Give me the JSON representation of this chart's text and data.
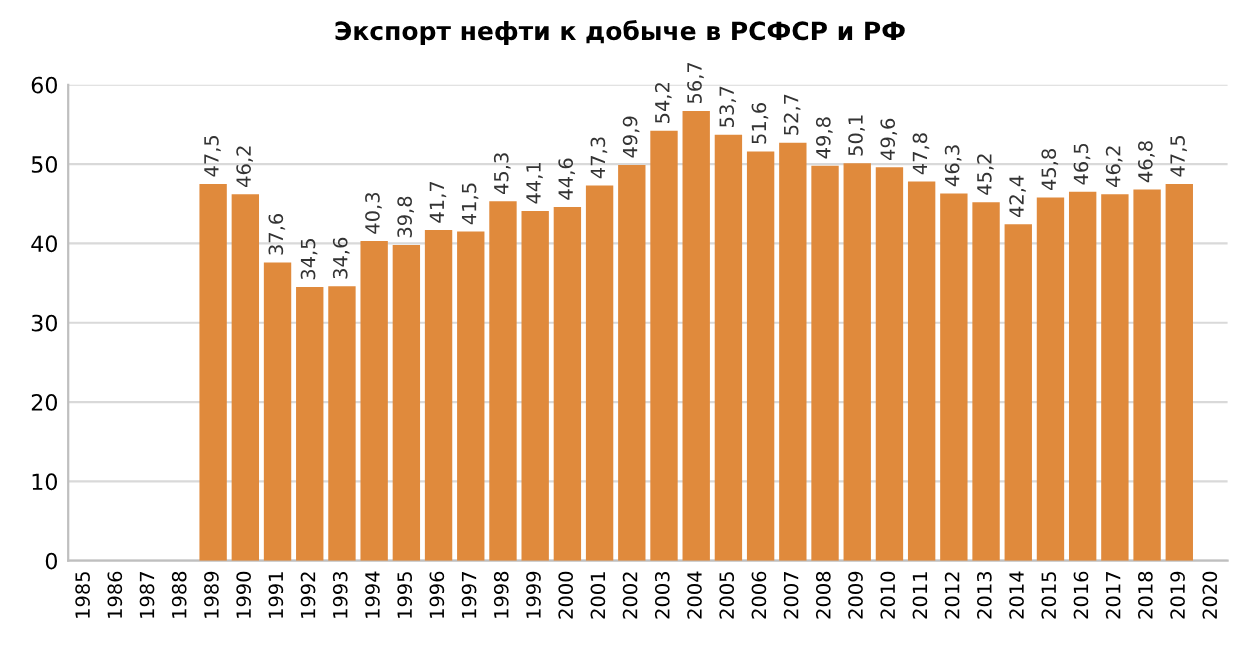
{
  "chart_data": {
    "type": "bar",
    "title": "Экспорт нефти к добыче в РСФСР и РФ",
    "categories": [
      "1985",
      "1986",
      "1987",
      "1988",
      "1989",
      "1990",
      "1991",
      "1992",
      "1993",
      "1994",
      "1995",
      "1996",
      "1997",
      "1998",
      "1999",
      "2000",
      "2001",
      "2002",
      "2003",
      "2004",
      "2005",
      "2006",
      "2007",
      "2008",
      "2009",
      "2010",
      "2011",
      "2012",
      "2013",
      "2014",
      "2015",
      "2016",
      "2017",
      "2018",
      "2019",
      "2020"
    ],
    "values": [
      null,
      null,
      null,
      null,
      47.5,
      46.2,
      37.6,
      34.5,
      34.6,
      40.3,
      39.8,
      41.7,
      41.5,
      45.3,
      44.1,
      44.6,
      47.3,
      49.9,
      54.2,
      56.7,
      53.7,
      51.6,
      52.7,
      49.8,
      50.1,
      49.6,
      47.8,
      46.3,
      45.2,
      42.4,
      45.8,
      46.5,
      46.2,
      46.8,
      47.5,
      null
    ],
    "value_labels": [
      null,
      null,
      null,
      null,
      "47,5",
      "46,2",
      "37,6",
      "34,5",
      "34,6",
      "40,3",
      "39,8",
      "41,7",
      "41,5",
      "45,3",
      "44,1",
      "44,6",
      "47,3",
      "49,9",
      "54,2",
      "56,7",
      "53,7",
      "51,6",
      "52,7",
      "49,8",
      "50,1",
      "49,6",
      "47,8",
      "46,3",
      "45,2",
      "42,4",
      "45,8",
      "46,5",
      "46,2",
      "46,8",
      "47,5",
      null
    ],
    "color": "#e08a3c",
    "ylim": [
      0,
      60
    ],
    "yticks": [
      0,
      10,
      20,
      30,
      40,
      50,
      60
    ],
    "grid": "y",
    "legend": false
  }
}
